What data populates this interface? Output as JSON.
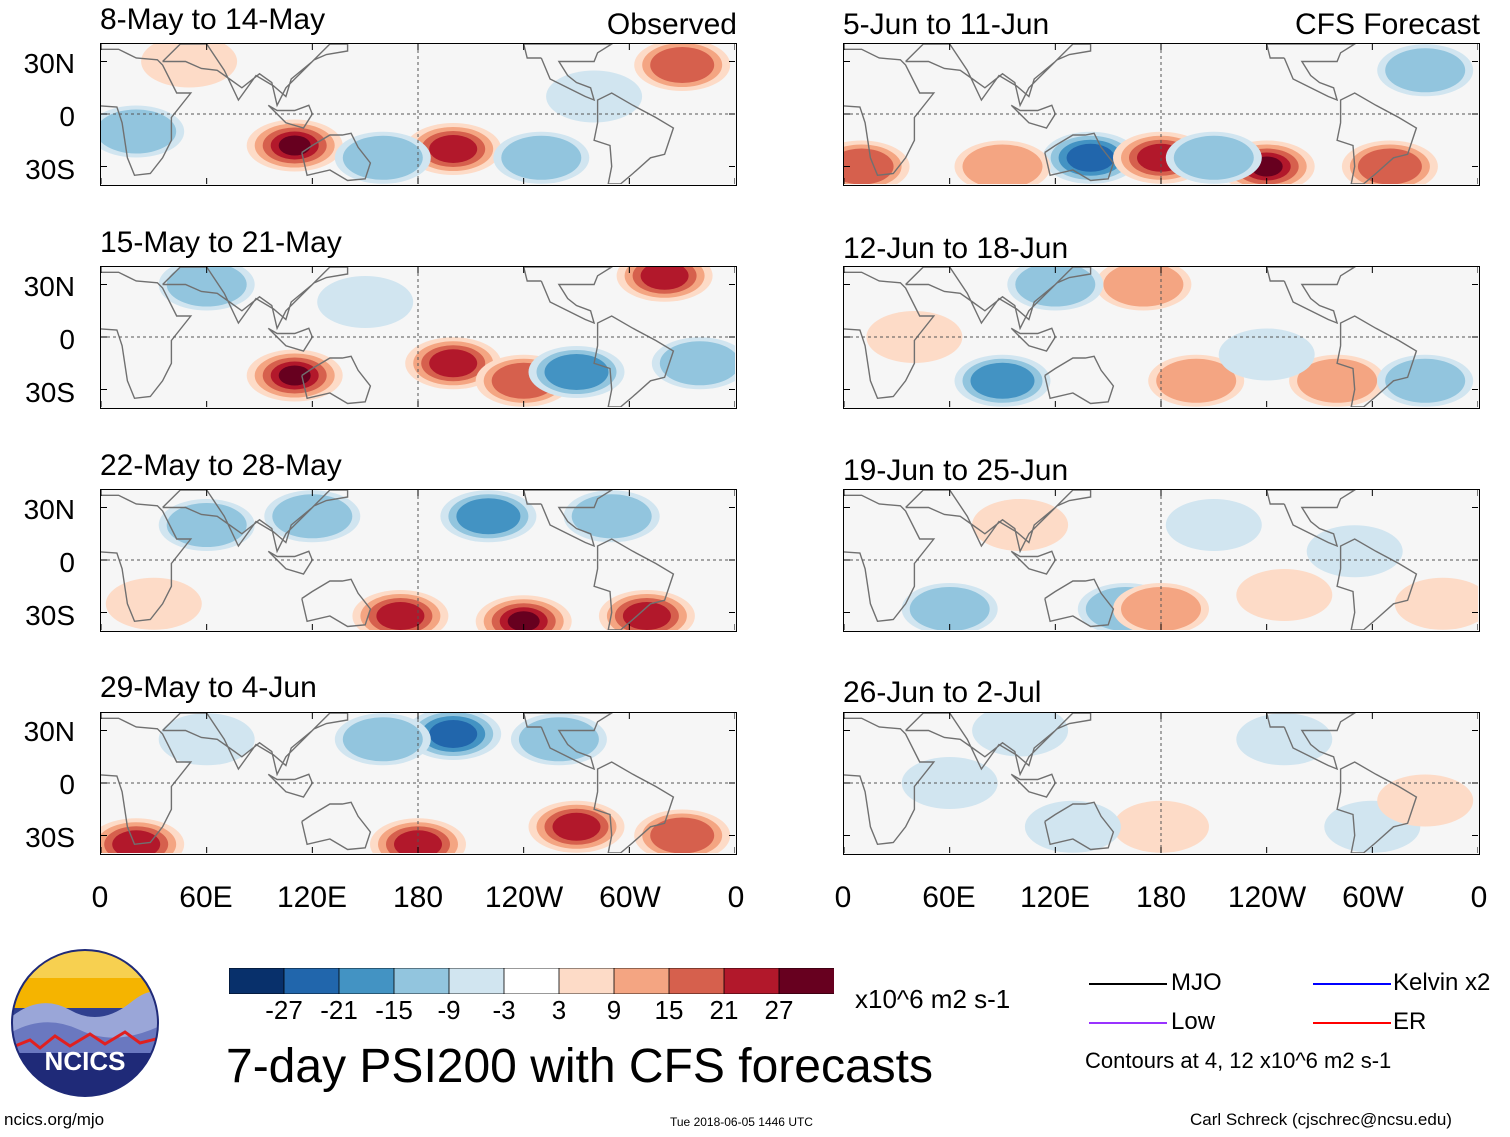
{
  "chart_data": {
    "type": "heatmap",
    "title": "7-day PSI200 with CFS forecasts",
    "variable": "PSI200",
    "units": "x10^6 m2 s-1",
    "panel_labels": {
      "observed": "Observed",
      "forecast": "CFS Forecast"
    },
    "y_tick_labels": [
      "30N",
      "0",
      "30S"
    ],
    "x_tick_labels": [
      "0",
      "60E",
      "120E",
      "180",
      "120W",
      "60W",
      "0"
    ],
    "x_ticks_deg": [
      0,
      60,
      120,
      180,
      240,
      300,
      360
    ],
    "y_ticks_deg": [
      30,
      0,
      -30
    ],
    "xlim": [
      0,
      360
    ],
    "ylim": [
      -40,
      40
    ],
    "panels": [
      {
        "id": "obs1",
        "column": "observed",
        "period": "8-May to 14-May",
        "anomalies": [
          {
            "lon": 110,
            "lat": -18,
            "value": 30
          },
          {
            "lon": 200,
            "lat": -20,
            "value": 24
          },
          {
            "lon": 330,
            "lat": 28,
            "value": 18
          },
          {
            "lon": 160,
            "lat": -25,
            "value": -10
          },
          {
            "lon": 250,
            "lat": -25,
            "value": -12
          },
          {
            "lon": 20,
            "lat": -10,
            "value": -9
          },
          {
            "lon": 50,
            "lat": 30,
            "value": 6
          },
          {
            "lon": 280,
            "lat": 10,
            "value": -8
          }
        ]
      },
      {
        "id": "obs2",
        "column": "observed",
        "period": "15-May to 21-May",
        "anomalies": [
          {
            "lon": 110,
            "lat": -22,
            "value": 30
          },
          {
            "lon": 200,
            "lat": -15,
            "value": 25
          },
          {
            "lon": 320,
            "lat": 35,
            "value": 22
          },
          {
            "lon": 240,
            "lat": -25,
            "value": 15
          },
          {
            "lon": 270,
            "lat": -20,
            "value": -15
          },
          {
            "lon": 150,
            "lat": 20,
            "value": -8
          },
          {
            "lon": 340,
            "lat": -15,
            "value": -10
          },
          {
            "lon": 60,
            "lat": 30,
            "value": -12
          }
        ]
      },
      {
        "id": "obs3",
        "column": "observed",
        "period": "22-May to 28-May",
        "anomalies": [
          {
            "lon": 170,
            "lat": -32,
            "value": 24
          },
          {
            "lon": 240,
            "lat": -35,
            "value": 28
          },
          {
            "lon": 310,
            "lat": -32,
            "value": 22
          },
          {
            "lon": 220,
            "lat": 25,
            "value": -18
          },
          {
            "lon": 120,
            "lat": 25,
            "value": -14
          },
          {
            "lon": 60,
            "lat": 20,
            "value": -10
          },
          {
            "lon": 290,
            "lat": 25,
            "value": -12
          },
          {
            "lon": 30,
            "lat": -25,
            "value": 8
          }
        ]
      },
      {
        "id": "obs4",
        "column": "observed",
        "period": "29-May to 4-Jun",
        "anomalies": [
          {
            "lon": 20,
            "lat": -35,
            "value": 24
          },
          {
            "lon": 180,
            "lat": -35,
            "value": 24
          },
          {
            "lon": 270,
            "lat": -25,
            "value": 26
          },
          {
            "lon": 330,
            "lat": -30,
            "value": 16
          },
          {
            "lon": 200,
            "lat": 28,
            "value": -24
          },
          {
            "lon": 160,
            "lat": 25,
            "value": -14
          },
          {
            "lon": 260,
            "lat": 25,
            "value": -12
          },
          {
            "lon": 60,
            "lat": 25,
            "value": -8
          }
        ]
      },
      {
        "id": "fc1",
        "column": "forecast",
        "period": "5-Jun to 11-Jun",
        "anomalies": [
          {
            "lon": 140,
            "lat": -25,
            "value": -26
          },
          {
            "lon": 180,
            "lat": -25,
            "value": 24
          },
          {
            "lon": 240,
            "lat": -30,
            "value": 28
          },
          {
            "lon": 310,
            "lat": -30,
            "value": 20
          },
          {
            "lon": 90,
            "lat": -30,
            "value": 10
          },
          {
            "lon": 10,
            "lat": -30,
            "value": 16
          },
          {
            "lon": 210,
            "lat": -25,
            "value": -14
          },
          {
            "lon": 330,
            "lat": 25,
            "value": -12
          }
        ]
      },
      {
        "id": "fc2",
        "column": "forecast",
        "period": "12-Jun to 18-Jun",
        "anomalies": [
          {
            "lon": 90,
            "lat": -25,
            "value": -18
          },
          {
            "lon": 280,
            "lat": -25,
            "value": 14
          },
          {
            "lon": 200,
            "lat": -25,
            "value": 12
          },
          {
            "lon": 330,
            "lat": -25,
            "value": -12
          },
          {
            "lon": 170,
            "lat": 30,
            "value": 10
          },
          {
            "lon": 120,
            "lat": 30,
            "value": -10
          },
          {
            "lon": 40,
            "lat": 0,
            "value": 6
          },
          {
            "lon": 240,
            "lat": -10,
            "value": -8
          }
        ]
      },
      {
        "id": "fc3",
        "column": "forecast",
        "period": "19-Jun to 25-Jun",
        "anomalies": [
          {
            "lon": 60,
            "lat": -28,
            "value": -10
          },
          {
            "lon": 160,
            "lat": -28,
            "value": -12
          },
          {
            "lon": 180,
            "lat": -28,
            "value": 10
          },
          {
            "lon": 250,
            "lat": -20,
            "value": 8
          },
          {
            "lon": 340,
            "lat": -25,
            "value": 6
          },
          {
            "lon": 290,
            "lat": 5,
            "value": -6
          },
          {
            "lon": 100,
            "lat": 20,
            "value": 4
          },
          {
            "lon": 210,
            "lat": 20,
            "value": -4
          }
        ]
      },
      {
        "id": "fc4",
        "column": "forecast",
        "period": "26-Jun to 2-Jul",
        "anomalies": [
          {
            "lon": 180,
            "lat": -25,
            "value": 8
          },
          {
            "lon": 130,
            "lat": -25,
            "value": -6
          },
          {
            "lon": 300,
            "lat": -25,
            "value": -6
          },
          {
            "lon": 330,
            "lat": -10,
            "value": 4
          },
          {
            "lon": 250,
            "lat": 25,
            "value": -5
          },
          {
            "lon": 100,
            "lat": 30,
            "value": -4
          },
          {
            "lon": 60,
            "lat": 0,
            "value": -4
          }
        ]
      }
    ],
    "colorbar": {
      "tick_labels": [
        "-27",
        "-21",
        "-15",
        "-9",
        "-3",
        "3",
        "9",
        "15",
        "21",
        "27"
      ],
      "colors": [
        "#08306b",
        "#2166ac",
        "#4393c3",
        "#92c5de",
        "#d1e5f0",
        "#ffffff",
        "#fddbc7",
        "#f4a582",
        "#d6604d",
        "#b2182b",
        "#67001f"
      ]
    },
    "legend": [
      {
        "name": "MJO",
        "color": "#000000"
      },
      {
        "name": "Kelvin x2",
        "color": "#0000ff"
      },
      {
        "name": "Low",
        "color": "#9933ff"
      },
      {
        "name": "ER",
        "color": "#ff0000"
      }
    ],
    "legend_note": "Contours at 4, 12 x10^6 m2 s-1"
  },
  "footer": {
    "logo_text": "NCICS",
    "url": "ncics.org/mjo",
    "timestamp": "Tue 2018-06-05 1446 UTC",
    "author": "Carl Schreck (cjschrec@ncsu.edu)"
  }
}
